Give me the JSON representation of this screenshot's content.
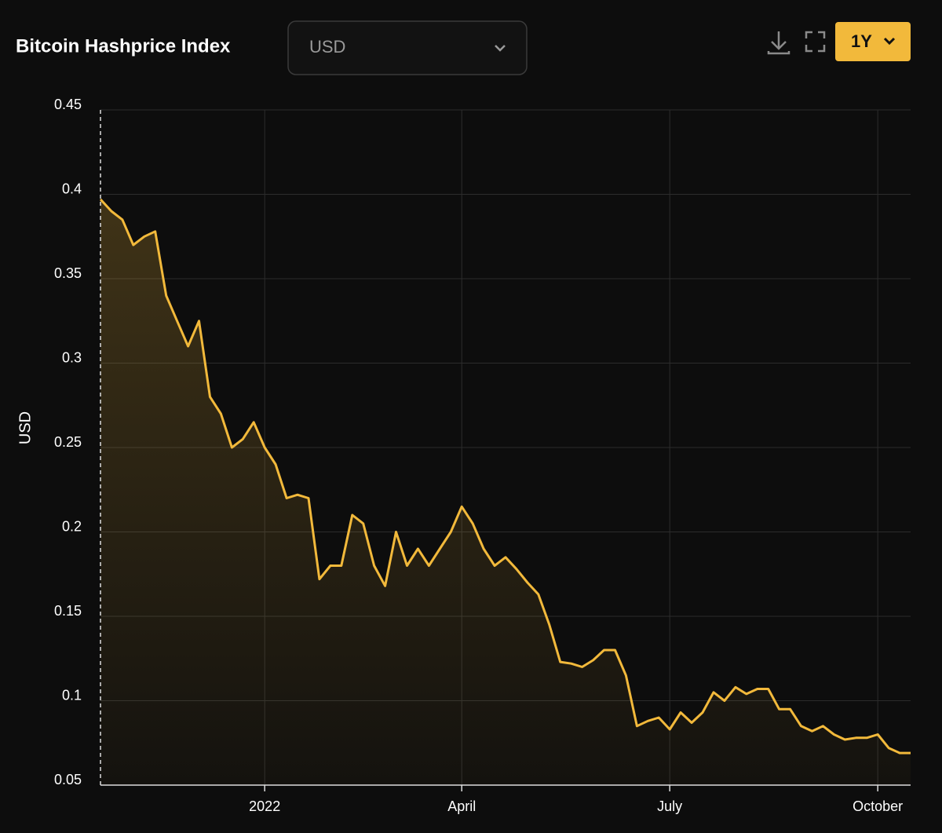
{
  "controls": {
    "currency": "USD",
    "range": "1Y"
  },
  "chart_data": {
    "type": "line",
    "title": "Bitcoin Hashprice Index",
    "ylabel": "USD",
    "categories": [
      null,
      null,
      null,
      null,
      null,
      null,
      null,
      null,
      null,
      null,
      null,
      null,
      null,
      null,
      null,
      "2022",
      null,
      null,
      null,
      null,
      null,
      null,
      null,
      null,
      null,
      null,
      null,
      null,
      null,
      null,
      null,
      null,
      null,
      "April",
      null,
      null,
      null,
      null,
      null,
      null,
      null,
      null,
      null,
      null,
      null,
      null,
      null,
      null,
      null,
      null,
      null,
      null,
      "July",
      null,
      null,
      null,
      null,
      null,
      null,
      null,
      null,
      null,
      null,
      null,
      null,
      null,
      null,
      null,
      null,
      null,
      null,
      "October",
      null,
      null,
      null
    ],
    "series": [
      {
        "name": "USD",
        "color": "#f2b93b",
        "values": [
          0.397,
          0.39,
          0.385,
          0.37,
          0.375,
          0.378,
          0.34,
          0.325,
          0.31,
          0.325,
          0.28,
          0.27,
          0.25,
          0.255,
          0.265,
          0.25,
          0.24,
          0.22,
          0.222,
          0.22,
          0.172,
          0.18,
          0.18,
          0.21,
          0.205,
          0.18,
          0.168,
          0.2,
          0.18,
          0.19,
          0.18,
          0.19,
          0.2,
          0.215,
          0.205,
          0.19,
          0.18,
          0.185,
          0.178,
          0.17,
          0.163,
          0.145,
          0.123,
          0.122,
          0.12,
          0.124,
          0.13,
          0.13,
          0.115,
          0.085,
          0.088,
          0.09,
          0.083,
          0.093,
          0.087,
          0.093,
          0.105,
          0.1,
          0.108,
          0.104,
          0.107,
          0.107,
          0.095,
          0.095,
          0.085,
          0.082,
          0.085,
          0.08,
          0.077,
          0.078,
          0.078,
          0.08,
          0.072,
          0.069,
          0.069
        ]
      }
    ],
    "ylim": [
      0.05,
      0.45
    ],
    "yticks": [
      0.05,
      0.1,
      0.15,
      0.2,
      0.25,
      0.3,
      0.35,
      0.4,
      0.45
    ],
    "grid": true
  }
}
